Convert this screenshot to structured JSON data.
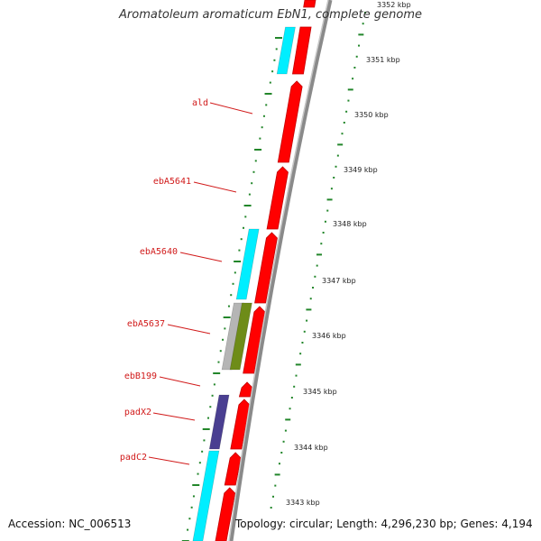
{
  "title": "Aromatoleum aromaticum EbN1, complete genome",
  "footer": {
    "accession": "Accession: NC_006513",
    "topology": "Topology: circular; Length: 4,296,230 bp; Genes: 4,194"
  },
  "colors": {
    "forward_cds": "#ff0000",
    "cyan_feature": "#00eeff",
    "purple_feature": "#4a3f91",
    "gray_feature": "#b5b5b5",
    "olive_feature": "#6e8c18",
    "backbone": "#999999",
    "tick": "#22862a",
    "label": "#d11a1a"
  },
  "kbp_scale": [
    "3352 kbp",
    "3351 kbp",
    "3350 kbp",
    "3349 kbp",
    "3348 kbp",
    "3347 kbp",
    "3346 kbp",
    "3345 kbp",
    "3344 kbp",
    "3343 kbp"
  ],
  "gene_labels": [
    "ald",
    "ebA5641",
    "ebA5640",
    "ebA5637",
    "ebB199",
    "padX2",
    "padC2"
  ],
  "features": {
    "red_strand_count": 11,
    "cyan_blocks": 3,
    "purple_blocks": 1,
    "gray_blocks": 1,
    "olive_blocks": 1
  }
}
